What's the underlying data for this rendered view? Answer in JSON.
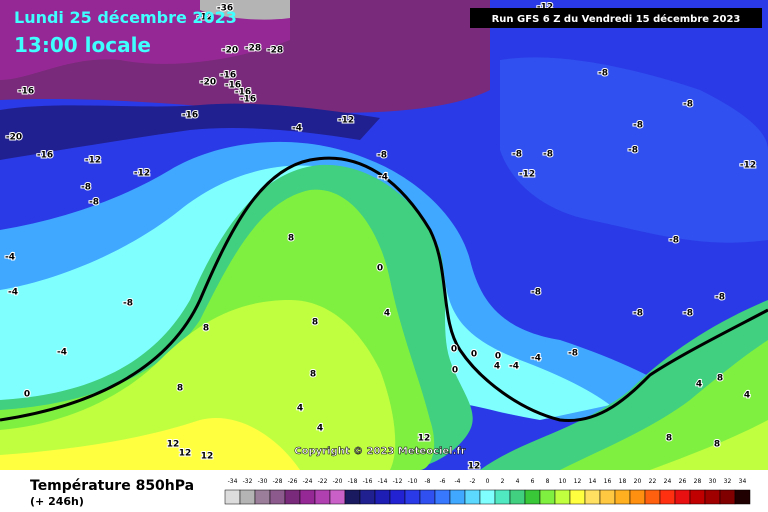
{
  "header": {
    "date": "Lundi 25 décembre 2023",
    "time": "13:00 locale",
    "run": "Run GFS 6 Z du Vendredi 15 décembre 2023"
  },
  "copyright": "Copyright © 2023 Meteociel.fr",
  "footer": {
    "title": "Température 850hPa",
    "lead": "(+ 246h)"
  },
  "legend": {
    "values": [
      -34,
      -32,
      -30,
      -28,
      -26,
      -24,
      -22,
      -20,
      -18,
      -16,
      -14,
      -12,
      -10,
      -8,
      -6,
      -4,
      -2,
      0,
      2,
      4,
      6,
      8,
      10,
      12,
      14,
      16,
      18,
      20,
      22,
      24,
      26,
      28,
      30,
      32,
      34
    ],
    "colors": [
      "#dcdcdc",
      "#b4b4b4",
      "#9a7e9a",
      "#8c5a8c",
      "#7a2a7a",
      "#962896",
      "#b040b0",
      "#c860c8",
      "#1a1a60",
      "#202090",
      "#1e1eb4",
      "#2222d2",
      "#2a3ae6",
      "#3050f0",
      "#3878ff",
      "#40a8ff",
      "#5cd8ff",
      "#80ffff",
      "#50e8c0",
      "#40d080",
      "#38c838",
      "#80f040",
      "#c0ff40",
      "#ffff40",
      "#ffe060",
      "#ffc840",
      "#ffb020",
      "#ff9010",
      "#ff6010",
      "#ff3010",
      "#e81010",
      "#c00000",
      "#a00000",
      "#800000",
      "#200000"
    ]
  },
  "contour_labels": [
    -12,
    -36,
    -28,
    -20,
    -16,
    -20,
    -16,
    -16,
    -16,
    -28,
    -16,
    -20,
    -16,
    -12,
    -12,
    -8,
    -8,
    -16,
    -4,
    -12,
    -8,
    -4,
    -12,
    -8,
    -8,
    -8,
    -8,
    -8,
    -8,
    -12,
    -12,
    -4,
    -4,
    -8,
    -4,
    0,
    8,
    8,
    8,
    8,
    4,
    8,
    0,
    -8,
    -8,
    -8,
    -8,
    -8,
    -8,
    0,
    0,
    0,
    -4,
    -4,
    4,
    0,
    4,
    4,
    12,
    12,
    12,
    12,
    12,
    8,
    8,
    8,
    4,
    4
  ]
}
